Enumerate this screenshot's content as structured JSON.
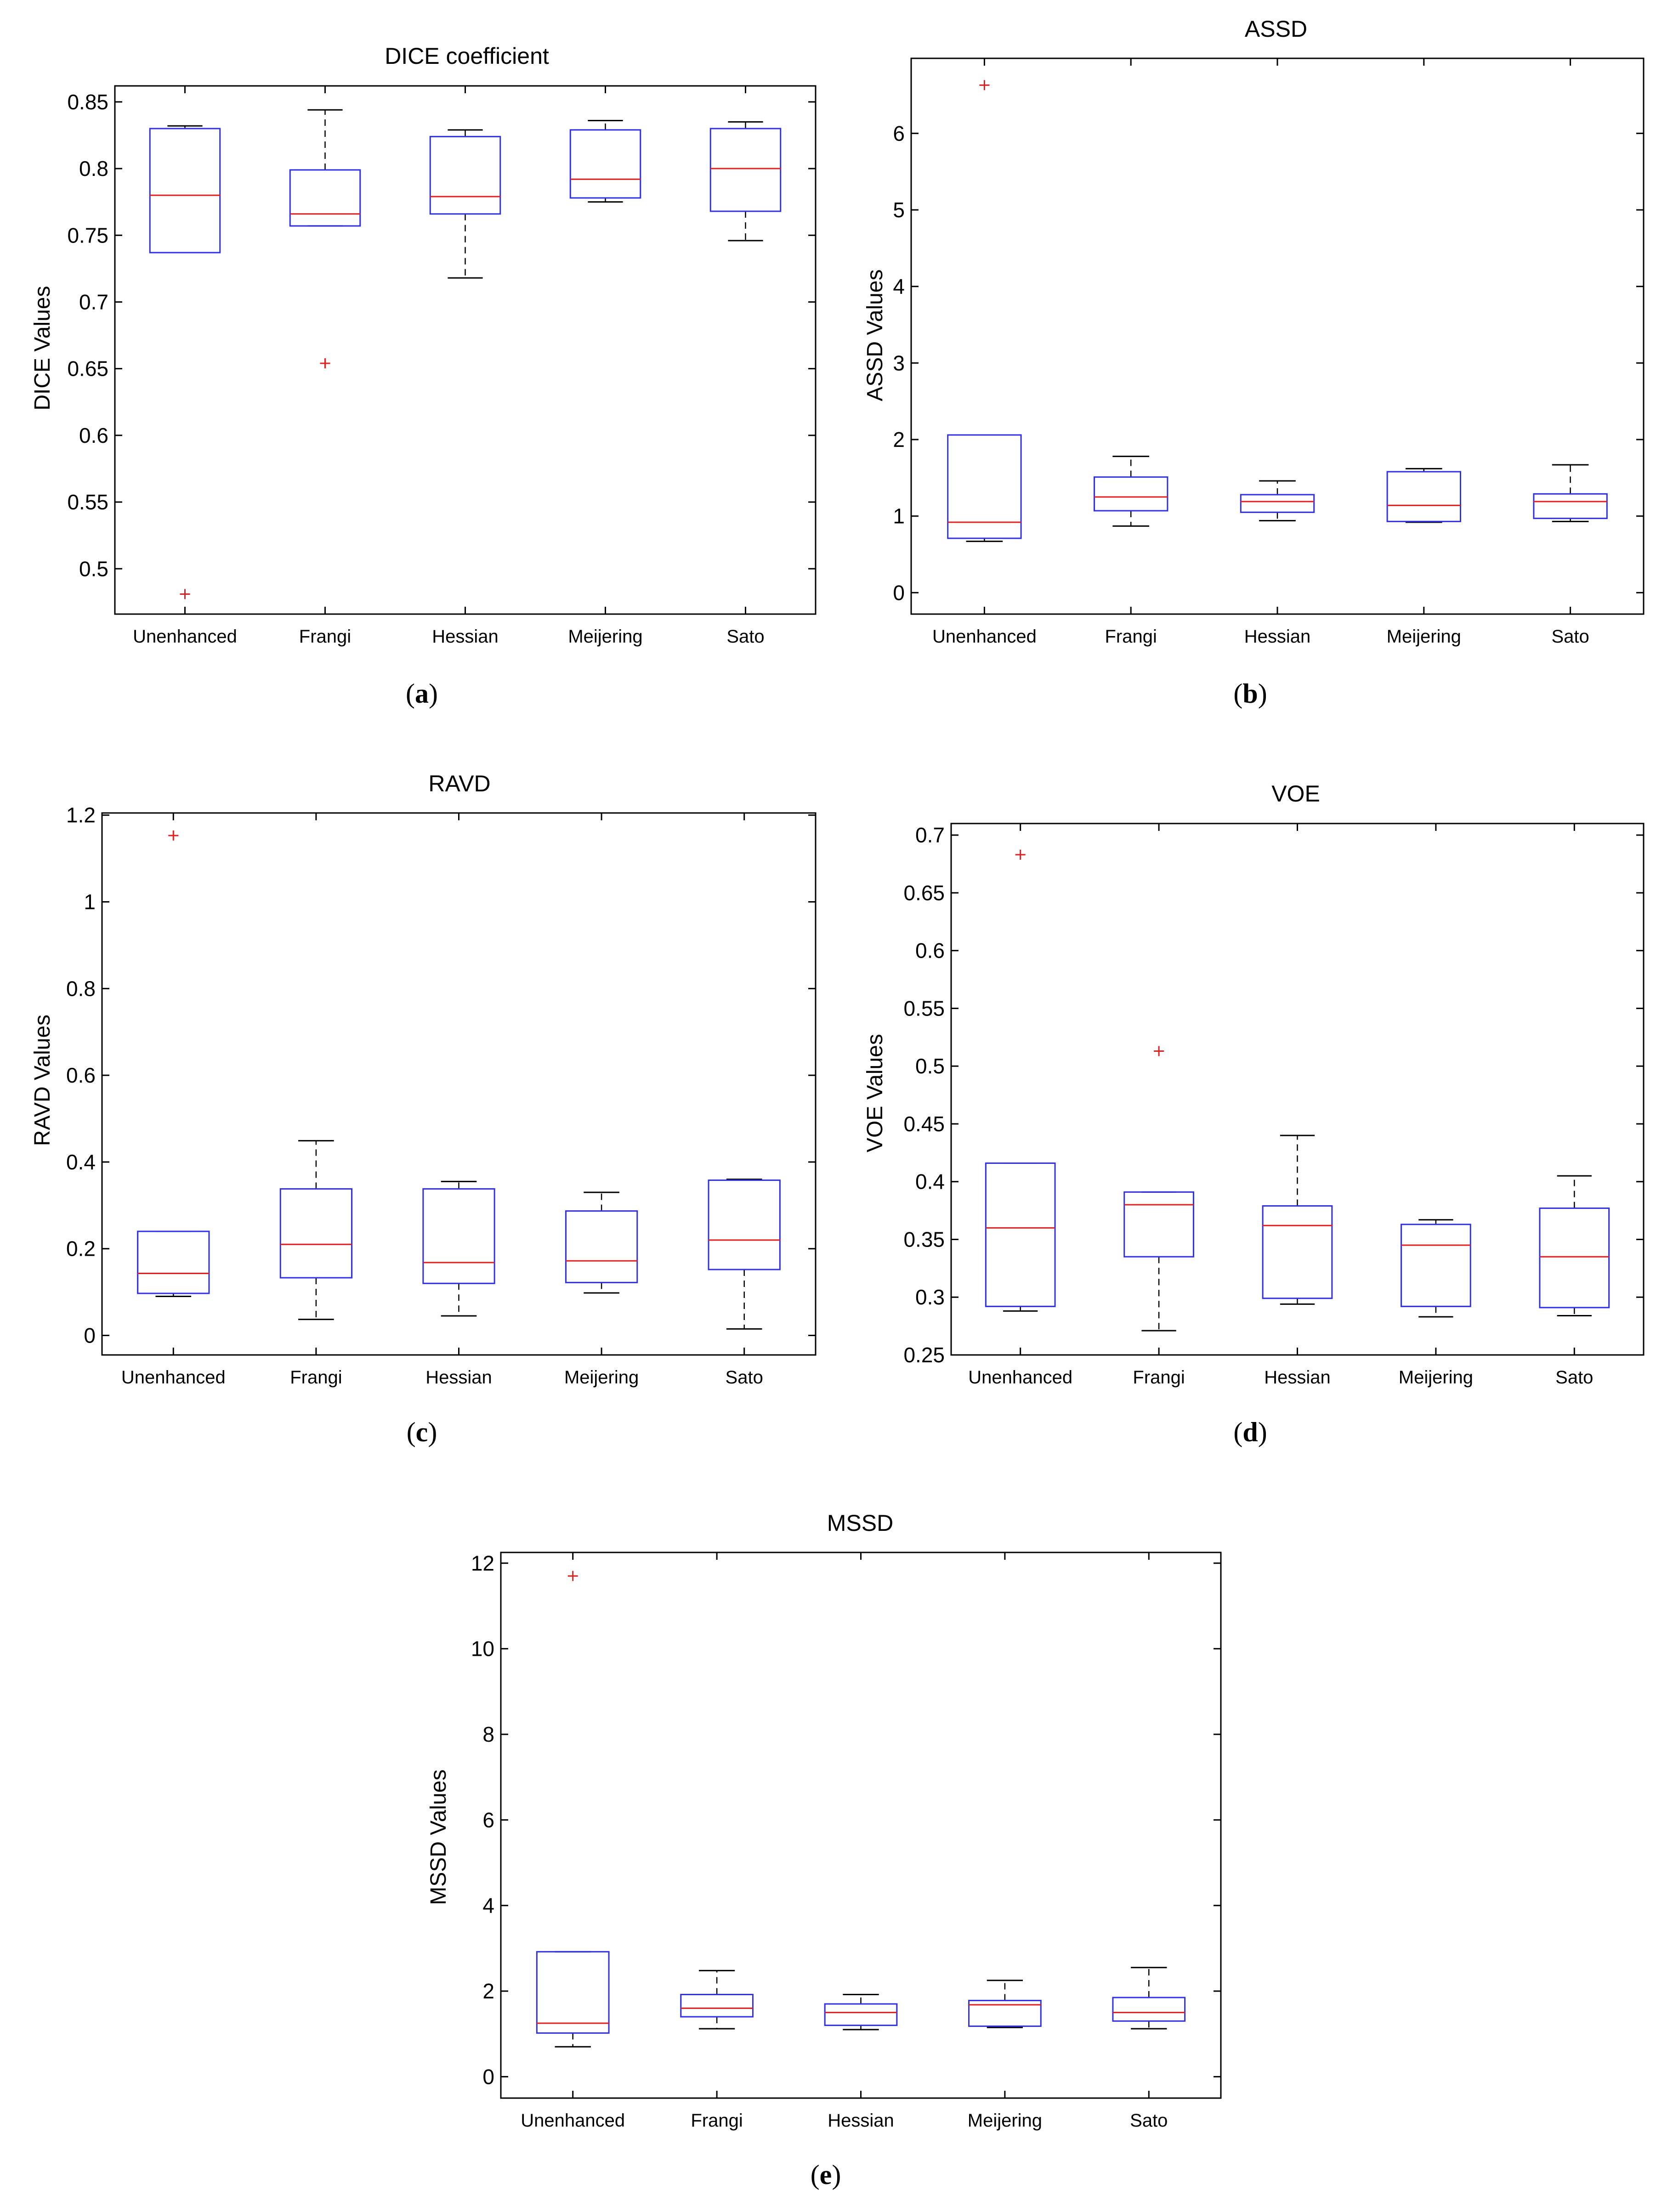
{
  "chart_data": [
    {
      "panel": "a",
      "type": "boxplot",
      "title": "DICE coefficient",
      "ylabel": "DICE Values",
      "xlabel": "",
      "categories": [
        "Unenhanced",
        "Frangi",
        "Hessian",
        "Meijering",
        "Sato"
      ],
      "ylim": [
        0.466,
        0.862
      ],
      "yticks": [
        0.5,
        0.55,
        0.6,
        0.65,
        0.7,
        0.75,
        0.8,
        0.85
      ],
      "ytick_labels": [
        "0.5",
        "0.55",
        "0.6",
        "0.65",
        "0.7",
        "0.75",
        "0.8",
        "0.85"
      ],
      "boxes": [
        {
          "whisker_low": 0.737,
          "q1": 0.737,
          "median": 0.78,
          "q3": 0.83,
          "whisker_high": 0.832,
          "outliers": [
            0.481
          ]
        },
        {
          "whisker_low": 0.757,
          "q1": 0.757,
          "median": 0.766,
          "q3": 0.799,
          "whisker_high": 0.844,
          "outliers": [
            0.654
          ]
        },
        {
          "whisker_low": 0.718,
          "q1": 0.766,
          "median": 0.779,
          "q3": 0.824,
          "whisker_high": 0.829,
          "outliers": []
        },
        {
          "whisker_low": 0.775,
          "q1": 0.778,
          "median": 0.792,
          "q3": 0.829,
          "whisker_high": 0.836,
          "outliers": []
        },
        {
          "whisker_low": 0.746,
          "q1": 0.768,
          "median": 0.8,
          "q3": 0.83,
          "whisker_high": 0.835,
          "outliers": []
        }
      ]
    },
    {
      "panel": "b",
      "type": "boxplot",
      "title": "ASSD",
      "ylabel": "ASSD Values",
      "xlabel": "",
      "categories": [
        "Unenhanced",
        "Frangi",
        "Hessian",
        "Meijering",
        "Sato"
      ],
      "ylim": [
        -0.28,
        6.98
      ],
      "yticks": [
        0,
        1,
        2,
        3,
        4,
        5,
        6
      ],
      "ytick_labels": [
        "0",
        "1",
        "2",
        "3",
        "4",
        "5",
        "6"
      ],
      "boxes": [
        {
          "whisker_low": 0.67,
          "q1": 0.71,
          "median": 0.92,
          "q3": 2.06,
          "whisker_high": 2.06,
          "outliers": [
            6.63
          ]
        },
        {
          "whisker_low": 0.87,
          "q1": 1.07,
          "median": 1.25,
          "q3": 1.51,
          "whisker_high": 1.78,
          "outliers": []
        },
        {
          "whisker_low": 0.94,
          "q1": 1.05,
          "median": 1.19,
          "q3": 1.28,
          "whisker_high": 1.46,
          "outliers": []
        },
        {
          "whisker_low": 0.92,
          "q1": 0.93,
          "median": 1.14,
          "q3": 1.58,
          "whisker_high": 1.62,
          "outliers": []
        },
        {
          "whisker_low": 0.93,
          "q1": 0.97,
          "median": 1.19,
          "q3": 1.29,
          "whisker_high": 1.67,
          "outliers": []
        }
      ]
    },
    {
      "panel": "c",
      "type": "boxplot",
      "title": "RAVD",
      "ylabel": "RAVD Values",
      "xlabel": "",
      "categories": [
        "Unenhanced",
        "Frangi",
        "Hessian",
        "Meijering",
        "Sato"
      ],
      "ylim": [
        -0.045,
        1.205
      ],
      "yticks": [
        0,
        0.2,
        0.4,
        0.6,
        0.8,
        1,
        1.2
      ],
      "ytick_labels": [
        "0",
        "0.2",
        "0.4",
        "0.6",
        "0.8",
        "1",
        "1.2"
      ],
      "boxes": [
        {
          "whisker_low": 0.09,
          "q1": 0.097,
          "median": 0.143,
          "q3": 0.24,
          "whisker_high": 0.24,
          "outliers": [
            1.153
          ]
        },
        {
          "whisker_low": 0.037,
          "q1": 0.133,
          "median": 0.21,
          "q3": 0.338,
          "whisker_high": 0.449,
          "outliers": []
        },
        {
          "whisker_low": 0.045,
          "q1": 0.12,
          "median": 0.168,
          "q3": 0.338,
          "whisker_high": 0.355,
          "outliers": []
        },
        {
          "whisker_low": 0.098,
          "q1": 0.122,
          "median": 0.172,
          "q3": 0.287,
          "whisker_high": 0.33,
          "outliers": []
        },
        {
          "whisker_low": 0.015,
          "q1": 0.152,
          "median": 0.22,
          "q3": 0.358,
          "whisker_high": 0.36,
          "outliers": []
        }
      ]
    },
    {
      "panel": "d",
      "type": "boxplot",
      "title": "VOE",
      "ylabel": "VOE Values",
      "xlabel": "",
      "categories": [
        "Unenhanced",
        "Frangi",
        "Hessian",
        "Meijering",
        "Sato"
      ],
      "ylim": [
        0.25,
        0.71
      ],
      "yticks": [
        0.25,
        0.3,
        0.35,
        0.4,
        0.45,
        0.5,
        0.55,
        0.6,
        0.65,
        0.7
      ],
      "ytick_labels": [
        "0.25",
        "0.3",
        "0.35",
        "0.4",
        "0.45",
        "0.5",
        "0.55",
        "0.6",
        "0.65",
        "0.7"
      ],
      "boxes": [
        {
          "whisker_low": 0.288,
          "q1": 0.292,
          "median": 0.36,
          "q3": 0.416,
          "whisker_high": 0.416,
          "outliers": [
            0.683
          ]
        },
        {
          "whisker_low": 0.271,
          "q1": 0.335,
          "median": 0.38,
          "q3": 0.391,
          "whisker_high": 0.391,
          "outliers": [
            0.513
          ]
        },
        {
          "whisker_low": 0.294,
          "q1": 0.299,
          "median": 0.362,
          "q3": 0.379,
          "whisker_high": 0.44,
          "outliers": []
        },
        {
          "whisker_low": 0.283,
          "q1": 0.292,
          "median": 0.345,
          "q3": 0.363,
          "whisker_high": 0.367,
          "outliers": []
        },
        {
          "whisker_low": 0.284,
          "q1": 0.291,
          "median": 0.335,
          "q3": 0.377,
          "whisker_high": 0.405,
          "outliers": []
        }
      ]
    },
    {
      "panel": "e",
      "type": "boxplot",
      "title": "MSSD",
      "ylabel": "MSSD Values",
      "xlabel": "",
      "categories": [
        "Unenhanced",
        "Frangi",
        "Hessian",
        "Meijering",
        "Sato"
      ],
      "ylim": [
        -0.5,
        12.25
      ],
      "yticks": [
        0,
        2,
        4,
        6,
        8,
        10,
        12
      ],
      "ytick_labels": [
        "0",
        "2",
        "4",
        "6",
        "8",
        "10",
        "12"
      ],
      "boxes": [
        {
          "whisker_low": 0.7,
          "q1": 1.02,
          "median": 1.25,
          "q3": 2.92,
          "whisker_high": 2.92,
          "outliers": [
            11.7
          ]
        },
        {
          "whisker_low": 1.12,
          "q1": 1.4,
          "median": 1.6,
          "q3": 1.92,
          "whisker_high": 2.48,
          "outliers": []
        },
        {
          "whisker_low": 1.1,
          "q1": 1.2,
          "median": 1.5,
          "q3": 1.7,
          "whisker_high": 1.92,
          "outliers": []
        },
        {
          "whisker_low": 1.15,
          "q1": 1.18,
          "median": 1.68,
          "q3": 1.78,
          "whisker_high": 2.25,
          "outliers": []
        },
        {
          "whisker_low": 1.12,
          "q1": 1.3,
          "median": 1.5,
          "q3": 1.85,
          "whisker_high": 2.55,
          "outliers": []
        }
      ]
    }
  ],
  "panel_labels": {
    "a": {
      "open": "(",
      "letter": "a",
      "close": ")"
    },
    "b": {
      "open": "(",
      "letter": "b",
      "close": ")"
    },
    "c": {
      "open": "(",
      "letter": "c",
      "close": ")"
    },
    "d": {
      "open": "(",
      "letter": "d",
      "close": ")"
    },
    "e": {
      "open": "(",
      "letter": "e",
      "close": ")"
    }
  },
  "colors": {
    "box": "#3030e6",
    "median": "#e02020",
    "outlier": "#e02020",
    "whisker": "#000000"
  }
}
